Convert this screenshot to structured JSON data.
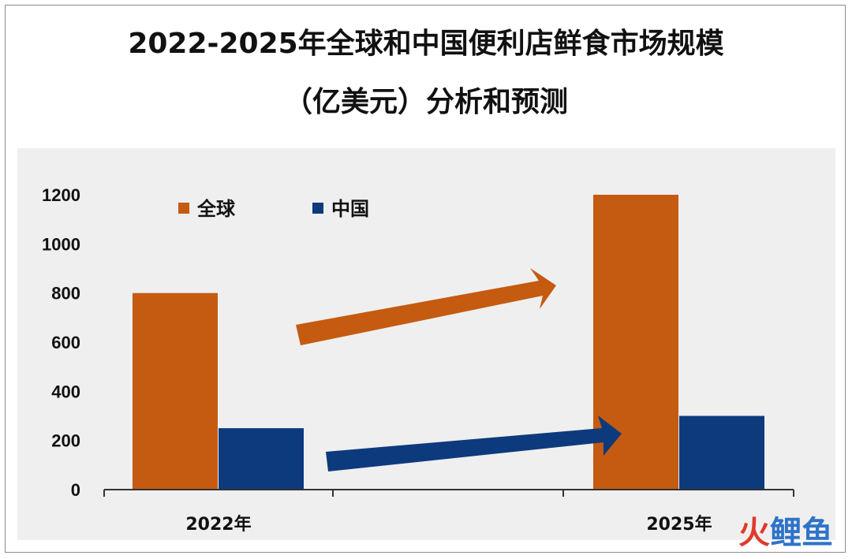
{
  "title_line1": "2022-2025年全球和中国便利店鲜食市场规模",
  "title_line2": "（亿美元）分析和预测",
  "chart_data": {
    "type": "bar",
    "categories": [
      "2022年",
      "2025年"
    ],
    "series": [
      {
        "name": "全球",
        "values": [
          800,
          1200
        ],
        "color": "#c55a11"
      },
      {
        "name": "中国",
        "values": [
          250,
          300
        ],
        "color": "#0d3a7d"
      }
    ],
    "ylim": [
      0,
      1200
    ],
    "yticks": [
      0,
      200,
      400,
      600,
      800,
      1000,
      1200
    ],
    "grid": false,
    "legend_position": "top-left",
    "annotations": [
      "arrow-global-growth",
      "arrow-china-growth"
    ]
  },
  "watermark": {
    "icon": "fire-icon",
    "text": "鲤鱼"
  }
}
